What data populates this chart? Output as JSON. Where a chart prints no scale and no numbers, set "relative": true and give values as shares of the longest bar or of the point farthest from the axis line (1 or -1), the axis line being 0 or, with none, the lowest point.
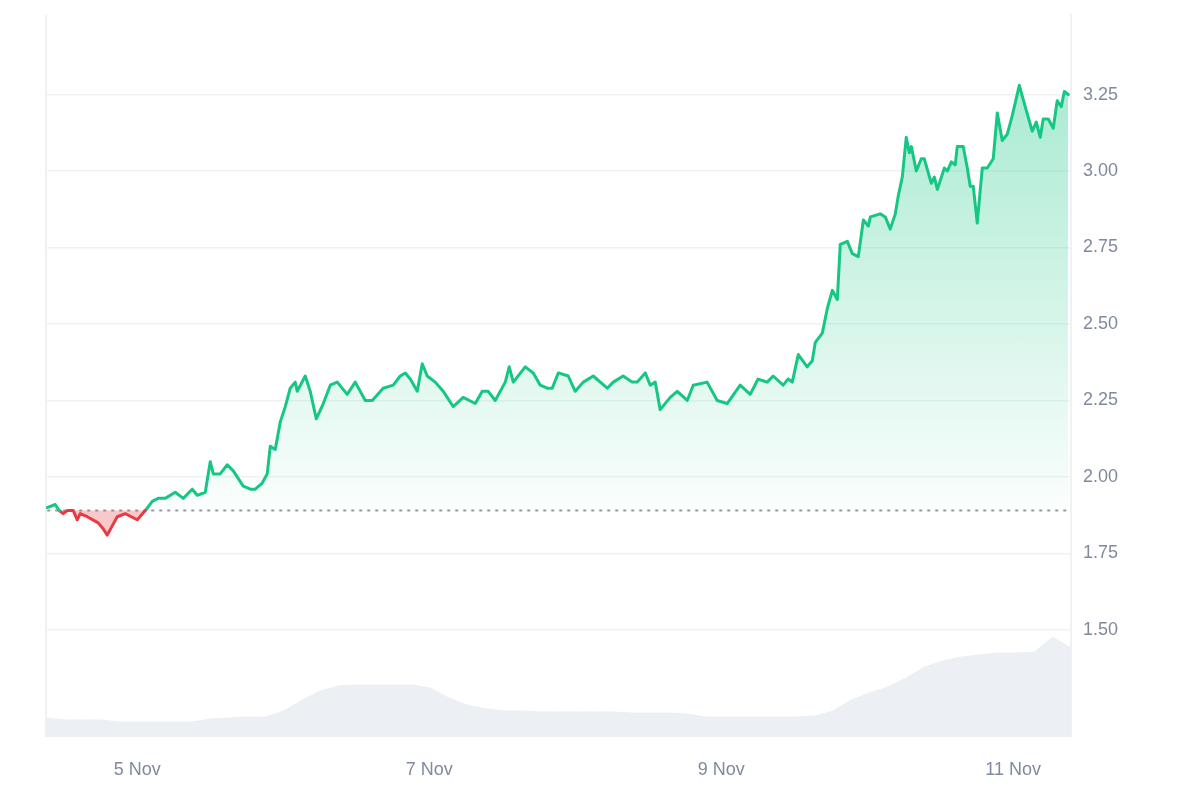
{
  "chart_data": [
    {
      "type": "area",
      "xlim": [
        "--11-04T09:00",
        "--11-11T09:30"
      ],
      "xticks": [
        {
          "value": "--11-05",
          "label": "5 Nov"
        },
        {
          "value": "--11-07",
          "label": "7 Nov"
        },
        {
          "value": "--11-09",
          "label": "9 Nov"
        },
        {
          "value": "--11-11",
          "label": "11 Nov"
        }
      ],
      "ylim": [
        1.15,
        3.51
      ],
      "yticks": [
        {
          "value": 1.5,
          "label": "1.50"
        },
        1.75,
        {
          "value": 2,
          "label": "2.00"
        },
        2.25,
        {
          "value": 2.5,
          "label": "2.50"
        },
        2.75,
        {
          "value": 3,
          "label": "3.00"
        },
        3.25
      ],
      "grid": "y",
      "ref_lines": [
        {
          "axis": "y",
          "value": 1.89,
          "color": "#999999",
          "line_style": "dotted"
        }
      ],
      "series": [
        {
          "color": "#16c784",
          "x": [
            "--11-04T09:12",
            "--11-04T10:31",
            "--11-04T11:11"
          ],
          "values": [
            1.9,
            1.91,
            1.89
          ]
        },
        {
          "color": "#ea3943",
          "x": [
            "--11-04T11:11",
            "--11-04T11:50",
            "--11-04T12:29",
            "--11-04T13:29",
            "--11-04T14:08",
            "--11-04T14:38",
            "--11-04T15:47",
            "--11-04T17:35",
            "--11-04T18:25",
            "--11-04T19:04",
            "--11-04T19:53",
            "--11-04T20:43",
            "--11-04T22:02",
            "--11-04T23:01",
            "--11-05T00:00",
            "--11-05T01:19"
          ],
          "values": [
            1.89,
            1.88,
            1.89,
            1.89,
            1.86,
            1.88,
            1.87,
            1.85,
            1.83,
            1.81,
            1.84,
            1.87,
            1.88,
            1.87,
            1.86,
            1.89
          ]
        },
        {
          "color": "#16c784",
          "x": [
            "--11-05T01:19",
            "--11-05T02:28",
            "--11-05T03:27",
            "--11-05T04:36",
            "--11-05T06:15",
            "--11-05T07:34",
            "--11-05T09:02",
            "--11-05T09:52",
            "--11-05T11:11",
            "--11-05T12:00",
            "--11-05T12:30",
            "--11-05T13:38",
            "--11-05T14:48",
            "--11-05T15:47",
            "--11-05T17:26",
            "--11-05T18:35",
            "--11-05T19:24",
            "--11-05T20:33",
            "--11-05T21:22",
            "--11-05T21:52",
            "--11-05T22:41",
            "--11-05T23:31",
            "--11-06T00:20",
            "--11-06T01:09",
            "--11-06T01:58",
            "--11-06T02:18",
            "--11-06T03:37",
            "--11-06T04:26",
            "--11-06T05:26",
            "--11-06T06:35",
            "--11-06T07:44",
            "--11-06T08:53",
            "--11-06T10:31",
            "--11-06T11:50",
            "--11-06T13:29",
            "--11-06T14:38",
            "--11-06T16:26",
            "--11-06T18:05",
            "--11-06T19:14",
            "--11-06T20:04",
            "--11-06T20:53",
            "--11-06T22:02",
            "--11-06T22:51",
            "--11-06T23:40",
            "--11-07T00:59",
            "--11-07T02:18",
            "--11-07T03:57",
            "--11-07T05:35",
            "--11-07T07:34",
            "--11-07T08:43",
            "--11-07T09:42",
            "--11-07T10:51",
            "--11-07T12:30",
            "--11-07T13:09",
            "--11-07T13:49",
            "--11-07T15:47",
            "--11-07T17:06",
            "--11-07T18:15",
            "--11-07T19:24",
            "--11-07T20:13",
            "--11-07T21:13",
            "--11-07T22:51",
            "--11-08T00:00",
            "--11-08T01:19",
            "--11-08T02:58",
            "--11-08T04:07",
            "--11-08T05:16",
            "--11-08T06:15",
            "--11-08T07:53",
            "--11-08T09:22",
            "--11-08T10:11",
            "--11-08T11:31",
            "--11-08T12:20",
            "--11-08T13:09",
            "--11-08T13:58",
            "--11-08T15:37",
            "--11-08T16:46",
            "--11-08T18:25",
            "--11-08T19:24",
            "--11-08T21:41",
            "--11-08T23:20",
            "--11-09T00:59",
            "--11-09T03:07",
            "--11-09T04:46",
            "--11-09T06:04",
            "--11-09T07:33",
            "--11-09T08:32",
            "--11-09T10:11",
            "--11-09T11:00",
            "--11-09T11:41",
            "--11-09T12:40",
            "--11-09T14:08",
            "--11-09T14:58",
            "--11-09T15:28",
            "--11-09T16:37",
            "--11-09T17:26",
            "--11-09T18:16",
            "--11-09T19:05",
            "--11-09T19:34",
            "--11-09T20:44",
            "--11-09T21:33",
            "--11-09T22:32",
            "--11-09T23:22",
            "--11-10T00:11",
            "--11-10T00:31",
            "--11-10T02:09",
            "--11-10T02:58",
            "--11-10T03:47",
            "--11-10T04:37",
            "--11-10T05:07",
            "--11-10T05:46",
            "--11-10T06:25",
            "--11-10T06:55",
            "--11-10T07:15",
            "--11-10T08:04",
            "--11-10T08:53",
            "--11-10T09:23",
            "--11-10T10:32",
            "--11-10T11:02",
            "--11-10T11:32",
            "--11-10T12:41",
            "--11-10T13:10",
            "--11-10T13:50",
            "--11-10T14:28",
            "--11-10T14:48",
            "--11-10T15:47",
            "--11-10T16:27",
            "--11-10T16:56",
            "--11-10T17:26",
            "--11-10T18:05",
            "--11-10T18:55",
            "--11-10T19:44",
            "--11-10T20:43",
            "--11-10T21:23",
            "--11-10T22:12",
            "--11-10T23:01",
            "--11-10T23:50",
            "--11-11T01:00",
            "--11-11T01:59",
            "--11-11T03:08",
            "--11-11T03:47",
            "--11-11T04:27",
            "--11-11T04:56",
            "--11-11T05:46",
            "--11-11T06:35",
            "--11-11T07:14",
            "--11-11T07:54",
            "--11-11T08:24",
            "--11-11T09:03"
          ],
          "values": [
            1.89,
            1.92,
            1.93,
            1.93,
            1.95,
            1.93,
            1.96,
            1.94,
            1.95,
            2.05,
            2.01,
            2.01,
            2.04,
            2.02,
            1.97,
            1.96,
            1.96,
            1.98,
            2.01,
            2.1,
            2.09,
            2.18,
            2.23,
            2.29,
            2.31,
            2.28,
            2.33,
            2.28,
            2.19,
            2.24,
            2.3,
            2.31,
            2.27,
            2.31,
            2.25,
            2.25,
            2.29,
            2.3,
            2.33,
            2.34,
            2.32,
            2.28,
            2.37,
            2.33,
            2.31,
            2.28,
            2.23,
            2.26,
            2.24,
            2.28,
            2.28,
            2.25,
            2.31,
            2.36,
            2.31,
            2.36,
            2.34,
            2.3,
            2.29,
            2.29,
            2.34,
            2.33,
            2.28,
            2.31,
            2.33,
            2.31,
            2.29,
            2.31,
            2.33,
            2.31,
            2.31,
            2.34,
            2.3,
            2.31,
            2.22,
            2.26,
            2.28,
            2.25,
            2.3,
            2.31,
            2.25,
            2.24,
            2.3,
            2.27,
            2.32,
            2.31,
            2.33,
            2.3,
            2.32,
            2.31,
            2.4,
            2.36,
            2.38,
            2.44,
            2.47,
            2.55,
            2.61,
            2.58,
            2.76,
            2.77,
            2.73,
            2.72,
            2.84,
            2.82,
            2.85,
            2.86,
            2.85,
            2.81,
            2.86,
            2.92,
            2.98,
            3.11,
            3.06,
            3.08,
            3.0,
            3.04,
            3.04,
            2.96,
            2.98,
            2.94,
            3.01,
            3.0,
            3.03,
            3.02,
            3.08,
            3.08,
            3.01,
            2.95,
            2.95,
            2.83,
            3.01,
            3.01,
            3.04,
            3.19,
            3.1,
            3.12,
            3.18,
            3.28,
            3.21,
            3.13,
            3.16,
            3.11,
            3.17,
            3.17,
            3.14,
            3.23,
            3.21,
            3.26,
            3.25
          ]
        }
      ]
    },
    {
      "type": "area",
      "relative": true,
      "tick_labels": false,
      "color": "#eceff3",
      "categories": [
        null,
        null,
        null,
        null,
        null,
        null,
        null,
        null,
        null,
        null,
        null,
        null,
        null,
        null,
        null,
        null,
        null,
        null,
        null,
        null,
        null,
        null,
        null,
        null,
        null,
        null,
        null,
        null,
        null,
        null,
        null,
        null,
        null,
        null,
        null,
        null,
        null,
        null,
        null,
        null,
        null,
        null,
        null,
        null,
        null,
        null,
        null,
        null,
        null,
        null,
        null,
        null,
        null,
        null,
        null,
        null,
        null
      ],
      "values": [
        0.19,
        0.17,
        0.17,
        0.17,
        0.15,
        0.15,
        0.15,
        0.15,
        0.15,
        0.18,
        0.19,
        0.2,
        0.2,
        0.26,
        0.37,
        0.46,
        0.51,
        0.52,
        0.52,
        0.52,
        0.52,
        0.49,
        0.39,
        0.32,
        0.28,
        0.26,
        0.26,
        0.25,
        0.25,
        0.25,
        0.25,
        0.25,
        0.24,
        0.24,
        0.24,
        0.23,
        0.2,
        0.2,
        0.2,
        0.2,
        0.2,
        0.2,
        0.21,
        0.26,
        0.37,
        0.44,
        0.5,
        0.59,
        0.7,
        0.76,
        0.8,
        0.82,
        0.84,
        0.84,
        0.85,
        1.0,
        0.89
      ]
    }
  ]
}
